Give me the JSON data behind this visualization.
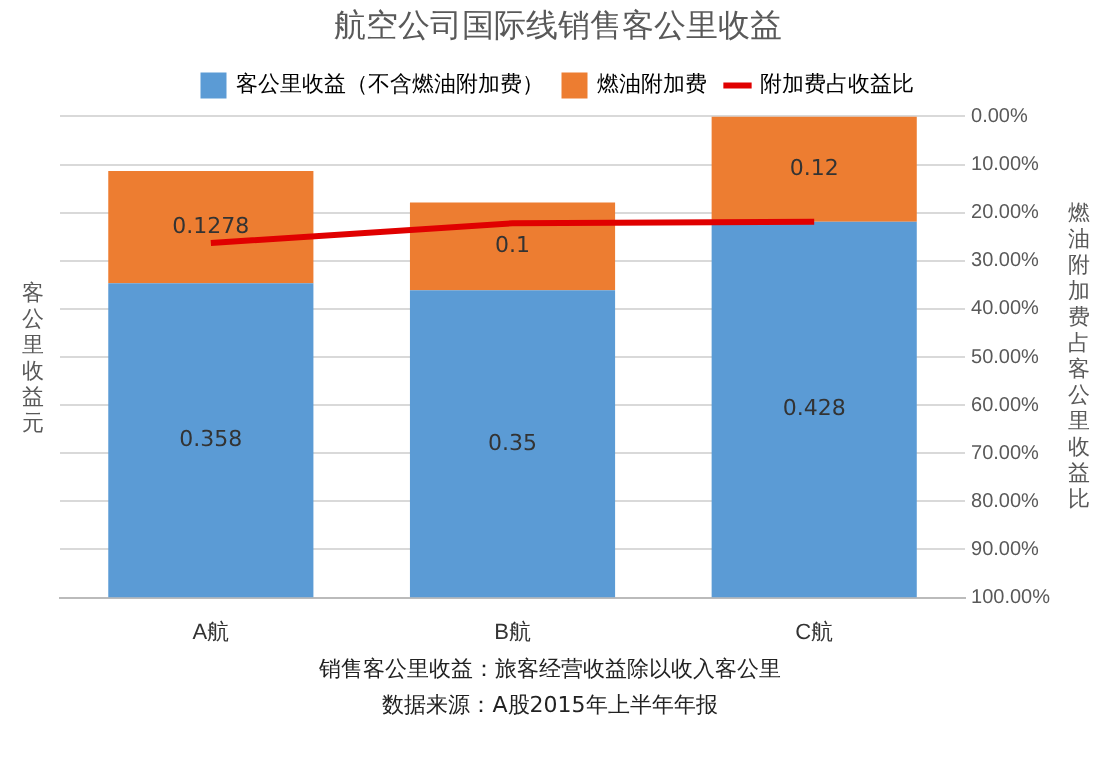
{
  "chart_data": {
    "type": "bar",
    "title": "航空公司国际线销售客公里收益",
    "ylabel": "客公里收益元",
    "y2label": "燃油附加费占客公里收益比",
    "categories": [
      "A航",
      "B航",
      "C航"
    ],
    "stacked": true,
    "series": [
      {
        "name": "客公里收益（不含燃油附加费）",
        "color": "#5b9bd5",
        "values": [
          0.358,
          0.35,
          0.428
        ],
        "value_labels": [
          "0.358",
          "0.35",
          "0.428"
        ]
      },
      {
        "name": "燃油附加费",
        "color": "#ed7d31",
        "values": [
          0.1278,
          0.1,
          0.12
        ],
        "value_labels": [
          "0.1278",
          "0.1",
          "0.12"
        ]
      },
      {
        "name": "附加费占收益比",
        "type": "line",
        "axis": "y2",
        "color": "#e00000",
        "values": [
          26.3,
          22.2,
          21.9
        ]
      }
    ],
    "y2lim": [
      100,
      0
    ],
    "y2ticks": [
      {
        "value": 0,
        "label": "0.00%"
      },
      {
        "value": 10,
        "label": "10.00%"
      },
      {
        "value": 20,
        "label": "20.00%"
      },
      {
        "value": 30,
        "label": "30.00%"
      },
      {
        "value": 40,
        "label": "40.00%"
      },
      {
        "value": 50,
        "label": "50.00%"
      },
      {
        "value": 60,
        "label": "60.00%"
      },
      {
        "value": 70,
        "label": "70.00%"
      },
      {
        "value": 80,
        "label": "80.00%"
      },
      {
        "value": 90,
        "label": "90.00%"
      },
      {
        "value": 100,
        "label": "100.00%"
      }
    ],
    "grid": true,
    "legend": "top",
    "marker": "none",
    "line_style": "solid",
    "annotations": [
      "销售客公里收益：旅客经营收益除以收入客公里",
      "数据来源：A股2015年上半年年报"
    ]
  }
}
